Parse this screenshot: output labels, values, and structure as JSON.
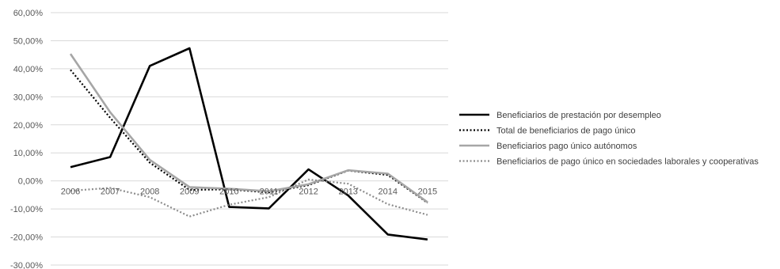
{
  "chart_data": {
    "type": "line",
    "title": "",
    "xlabel": "",
    "ylabel": "",
    "x": [
      "2006",
      "2007",
      "2008",
      "2009",
      "2010",
      "2011",
      "2012",
      "2013",
      "2014",
      "2015"
    ],
    "ylim": [
      -30,
      60
    ],
    "yticks": [
      60,
      50,
      40,
      30,
      20,
      10,
      0,
      -10,
      -20,
      -30
    ],
    "ytick_labels": [
      "60,00%",
      "50,00%",
      "40,00%",
      "30,00%",
      "20,00%",
      "10,00%",
      "0,00%",
      "-10,00%",
      "-20,00%",
      "-30,00%"
    ],
    "grid": "horizontal",
    "legend_position": "right",
    "series": [
      {
        "name": "Beneficiarios de prestación por desempleo",
        "values": [
          4.9,
          8.5,
          41.0,
          47.3,
          -9.3,
          -9.8,
          4.1,
          -5.2,
          -19.1,
          -20.9
        ],
        "color": "#000000",
        "style": "solid"
      },
      {
        "name": "Total de beneficiarios de pago único",
        "values": [
          39.6,
          22.5,
          6.5,
          -3.2,
          -3.0,
          -4.1,
          -1.5,
          3.7,
          2.1,
          -7.8
        ],
        "color": "#000000",
        "style": "dotted"
      },
      {
        "name": "Beneficiarios pago único autónomos",
        "values": [
          45.3,
          24.5,
          7.5,
          -2.2,
          -2.8,
          -3.7,
          -1.2,
          3.8,
          2.6,
          -7.6
        ],
        "color": "#a6a6a6",
        "style": "solid"
      },
      {
        "name": "Beneficiarios de pago único en sociedades laborales y cooperativas",
        "values": [
          -3.5,
          -2.5,
          -5.8,
          -12.7,
          -8.5,
          -5.8,
          0.5,
          -1.0,
          -8.3,
          -12.1
        ],
        "color": "#8c8c8c",
        "style": "dotted"
      }
    ]
  }
}
